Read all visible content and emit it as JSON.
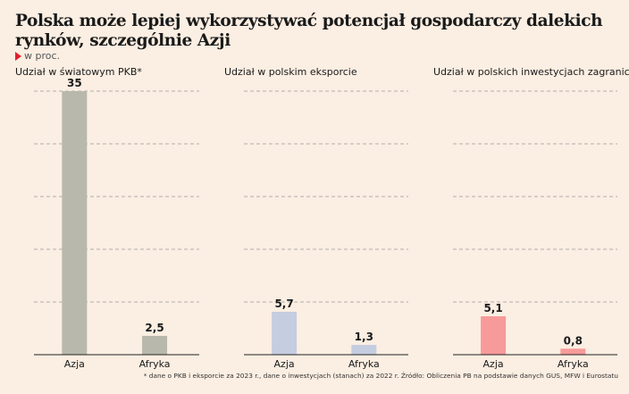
{
  "title": "Polska może lepiej wykorzystywać potencjał gospodarczy dalekich rynków, szczególnie Azji",
  "unit_label": "w proc.",
  "footnote": "* dane o PKB i eksporcie za 2023 r., dane o inwestycjach (stanach) za 2022 r. Źródło: Obliczenia PB na podstawie danych GUS, MFW i Eurostatu",
  "chart_data": [
    {
      "type": "bar",
      "title": "Udział w światowym PKB*",
      "categories": [
        "Azja",
        "Afryka"
      ],
      "values": [
        35,
        2.5
      ],
      "value_labels": [
        "35",
        "2,5"
      ],
      "ylim": [
        0,
        35
      ],
      "grid": true,
      "color": "#b8b8ac"
    },
    {
      "type": "bar",
      "title": "Udział w polskim eksporcie",
      "categories": [
        "Azja",
        "Afryka"
      ],
      "values": [
        5.7,
        1.3
      ],
      "value_labels": [
        "5,7",
        "1,3"
      ],
      "ylim": [
        0,
        35
      ],
      "grid": true,
      "color": "#c5cde0"
    },
    {
      "type": "bar",
      "title": "Udział w polskich inwestycjach zagranicznych*",
      "categories": [
        "Azja",
        "Afryka"
      ],
      "values": [
        5.1,
        0.8
      ],
      "value_labels": [
        "5,1",
        "0,8"
      ],
      "ylim": [
        0,
        35
      ],
      "grid": true,
      "color": "#f79a9a"
    }
  ]
}
